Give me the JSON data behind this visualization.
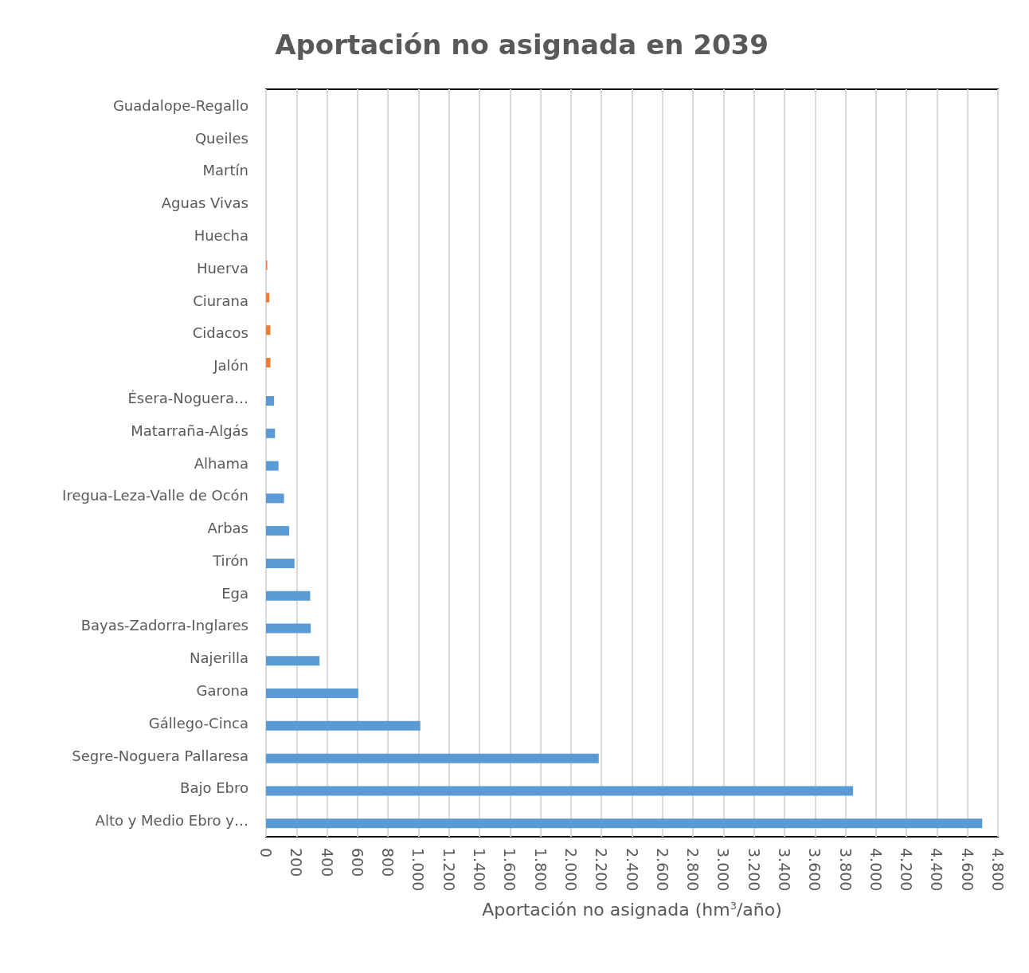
{
  "chart_data": {
    "type": "bar",
    "orientation": "horizontal",
    "title": "Aportación no asignada en 2039",
    "xlabel": "Aportación no asignada (hm$^{3}$/año)",
    "categories": [
      "Guadalope-Regallo",
      "Queiles",
      "Martín",
      "Aguas Vivas",
      "Huecha",
      "Huerva",
      "Ciurana",
      "Cidacos",
      "Jalón",
      "Ésera-Noguera…",
      "Matarraña-Algás",
      "Alhama",
      "Iregua-Leza-Valle de Ocón",
      "Arbas",
      "Tirón",
      "Ega",
      "Bayas-Zadorra-Inglares",
      "Najerilla",
      "Garona",
      "Gállego-Cinca",
      "Segre-Noguera Pallaresa",
      "Bajo Ebro",
      "Alto y Medio Ebro y…"
    ],
    "series": [
      {
        "color": "#ed7d31",
        "values": [
          null,
          null,
          null,
          null,
          null,
          8,
          22,
          29,
          29,
          null,
          null,
          null,
          null,
          null,
          null,
          null,
          null,
          null,
          null,
          null,
          null,
          null,
          null
        ]
      },
      {
        "color": "#5b9bd5",
        "values": [
          null,
          null,
          null,
          null,
          null,
          null,
          null,
          null,
          null,
          53,
          59,
          82,
          118,
          152,
          187,
          290,
          293,
          351,
          605,
          1012,
          2182,
          3850,
          4697
        ]
      }
    ],
    "xlim": [
      0,
      4800
    ],
    "xticks": [
      0,
      200,
      400,
      600,
      800,
      {
        "value": 1000,
        "label": "1.000"
      },
      {
        "value": 1200,
        "label": "1.200"
      },
      {
        "value": 1400,
        "label": "1.400"
      },
      {
        "value": 1600,
        "label": "1.600"
      },
      {
        "value": 1800,
        "label": "1.800"
      },
      {
        "value": 2000,
        "label": "2.000"
      },
      {
        "value": 2200,
        "label": "2.200"
      },
      {
        "value": 2400,
        "label": "2.400"
      },
      {
        "value": 2600,
        "label": "2.600"
      },
      {
        "value": 2800,
        "label": "2.800"
      },
      {
        "value": 3000,
        "label": "3.000"
      },
      {
        "value": 3200,
        "label": "3.200"
      },
      {
        "value": 3400,
        "label": "3.400"
      },
      {
        "value": 3600,
        "label": "3.600"
      },
      {
        "value": 3800,
        "label": "3.800"
      },
      {
        "value": 4000,
        "label": "4.000"
      },
      {
        "value": 4200,
        "label": "4.200"
      },
      {
        "value": 4400,
        "label": "4.400"
      },
      {
        "value": 4600,
        "label": "4.600"
      },
      {
        "value": 4800,
        "label": "4.800"
      }
    ],
    "grid": "x"
  }
}
